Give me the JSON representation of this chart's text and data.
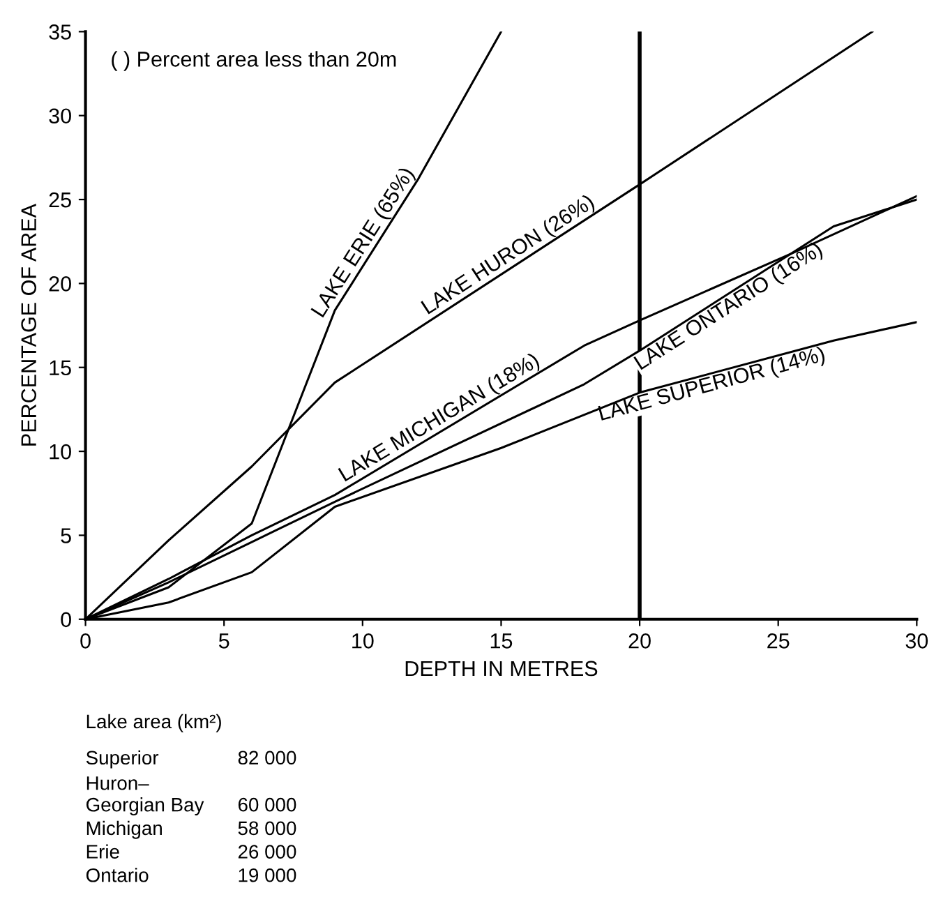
{
  "chart_data": {
    "type": "line",
    "xlabel": "DEPTH IN METRES",
    "ylabel": "PERCENTAGE OF AREA",
    "xlim": [
      0,
      30
    ],
    "ylim": [
      0,
      35
    ],
    "xticks": [
      0,
      5,
      10,
      15,
      20,
      25,
      30
    ],
    "yticks": [
      0,
      5,
      10,
      15,
      20,
      25,
      30,
      35
    ],
    "grid": false,
    "marker": "none",
    "line_style": "solid",
    "series": [
      {
        "name": "LAKE ERIE (65%)",
        "color": "#000000",
        "x": [
          0,
          3,
          6,
          9,
          12,
          15
        ],
        "values": [
          0,
          1.9,
          5.7,
          18.4,
          26.2,
          35
        ]
      },
      {
        "name": "LAKE HURON (26%)",
        "color": "#000000",
        "x": [
          0,
          3,
          6,
          9,
          20,
          28.4
        ],
        "values": [
          0,
          4.7,
          9.1,
          14.1,
          25.9,
          35
        ]
      },
      {
        "name": "LAKE MICHIGAN (18%)",
        "color": "#000000",
        "x": [
          0,
          3,
          6,
          9,
          18,
          20,
          25.5,
          30
        ],
        "values": [
          0,
          2.4,
          5.0,
          7.4,
          16.3,
          17.8,
          21.8,
          25.2
        ]
      },
      {
        "name": "LAKE ONTARIO (16%)",
        "color": "#000000",
        "x": [
          0,
          3,
          6,
          9,
          18,
          20,
          27,
          30
        ],
        "values": [
          0,
          2.2,
          4.6,
          7.0,
          14.0,
          16.0,
          23.4,
          25.0
        ]
      },
      {
        "name": "LAKE SUPERIOR (14%)",
        "color": "#000000",
        "x": [
          0,
          3,
          6,
          9,
          15,
          20,
          27,
          30
        ],
        "values": [
          0,
          1.0,
          2.8,
          6.7,
          10.2,
          13.5,
          16.6,
          17.7
        ]
      }
    ],
    "ref_lines": [
      {
        "axis": "x",
        "value": 20,
        "color": "#000000",
        "line_style": "solid"
      }
    ],
    "annotations": [
      "( ) Percent area less than 20m",
      "Lake area (km²)",
      "Superior",
      "82 000",
      "Huron–\nGeorgian Bay",
      "60 000",
      "Michigan",
      "58 000",
      "Erie",
      "26 000",
      "Ontario",
      "19 000"
    ]
  }
}
